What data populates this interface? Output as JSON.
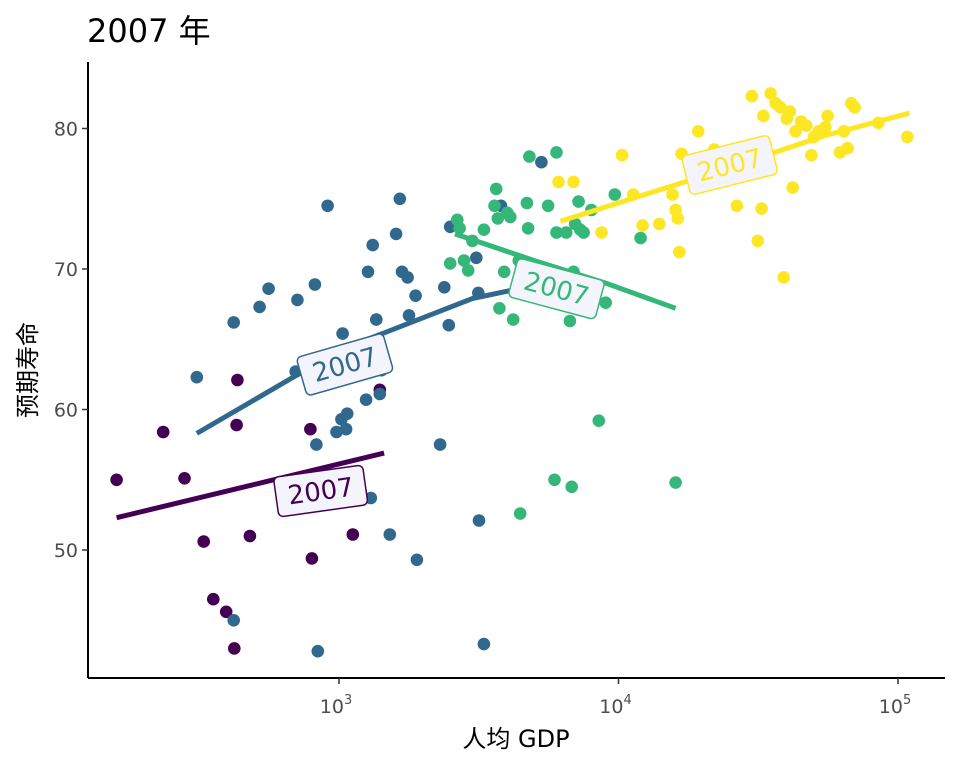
{
  "chart_data": {
    "type": "scatter",
    "title": "2007 年",
    "xlabel": "人均 GDP",
    "ylabel": "预期寿命",
    "x_scale": "log10",
    "xlim": [
      120,
      150000
    ],
    "ylim": [
      41,
      85
    ],
    "x_ticks": [
      {
        "value": 1000,
        "base": "10",
        "exp": "3"
      },
      {
        "value": 10000,
        "base": "10",
        "exp": "4"
      },
      {
        "value": 100000,
        "base": "10",
        "exp": "5"
      }
    ],
    "y_ticks": [
      50,
      60,
      70,
      80
    ],
    "grid": false,
    "legend": "none",
    "series": [
      {
        "color": "#440154",
        "fit_label": "2007",
        "fit": [
          [
            160,
            52.3
          ],
          [
            1450,
            56.9
          ]
        ],
        "points": [
          [
            160,
            55.0
          ],
          [
            235,
            58.4
          ],
          [
            280,
            55.1
          ],
          [
            328,
            50.6
          ],
          [
            355,
            46.5
          ],
          [
            395,
            45.6
          ],
          [
            422,
            43.0
          ],
          [
            430,
            58.9
          ],
          [
            433,
            62.1
          ],
          [
            480,
            51.0
          ],
          [
            790,
            58.6
          ],
          [
            800,
            49.4
          ],
          [
            1120,
            51.1
          ],
          [
            1400,
            61.4
          ]
        ]
      },
      {
        "color": "#31688e",
        "fit_label": "2007",
        "fit": [
          [
            310,
            58.3
          ],
          [
            1000,
            64.2
          ],
          [
            3000,
            67.9
          ],
          [
            5500,
            69.0
          ]
        ],
        "points": [
          [
            310,
            62.3
          ],
          [
            420,
            66.2
          ],
          [
            420,
            45.0
          ],
          [
            520,
            67.3
          ],
          [
            560,
            68.6
          ],
          [
            700,
            62.7
          ],
          [
            710,
            67.8
          ],
          [
            820,
            68.9
          ],
          [
            830,
            57.5
          ],
          [
            840,
            42.8
          ],
          [
            910,
            74.5
          ],
          [
            980,
            58.4
          ],
          [
            1020,
            59.3
          ],
          [
            1030,
            65.4
          ],
          [
            1060,
            58.6
          ],
          [
            1070,
            59.7
          ],
          [
            1250,
            60.7
          ],
          [
            1270,
            69.8
          ],
          [
            1300,
            53.7
          ],
          [
            1320,
            71.7
          ],
          [
            1360,
            66.4
          ],
          [
            1400,
            61.1
          ],
          [
            1420,
            62.8
          ],
          [
            1520,
            51.1
          ],
          [
            1600,
            72.5
          ],
          [
            1650,
            75.0
          ],
          [
            1680,
            69.8
          ],
          [
            1760,
            69.4
          ],
          [
            1780,
            66.7
          ],
          [
            1880,
            68.1
          ],
          [
            1900,
            49.3
          ],
          [
            2300,
            57.5
          ],
          [
            2380,
            68.7
          ],
          [
            2470,
            66.0
          ],
          [
            2500,
            73.0
          ],
          [
            3100,
            70.8
          ],
          [
            3150,
            68.3
          ],
          [
            3170,
            52.1
          ],
          [
            3300,
            43.3
          ],
          [
            3800,
            74.5
          ],
          [
            5300,
            77.6
          ]
        ]
      },
      {
        "color": "#35b779",
        "fit_label": "2007",
        "fit": [
          [
            2600,
            72.5
          ],
          [
            5000,
            70.6
          ],
          [
            9000,
            69.0
          ],
          [
            16000,
            67.2
          ]
        ],
        "points": [
          [
            2500,
            70.4
          ],
          [
            2650,
            73.5
          ],
          [
            2700,
            72.9
          ],
          [
            2800,
            70.6
          ],
          [
            2900,
            69.9
          ],
          [
            3000,
            72.0
          ],
          [
            3300,
            72.8
          ],
          [
            3600,
            74.5
          ],
          [
            3650,
            75.7
          ],
          [
            3700,
            73.6
          ],
          [
            3750,
            67.2
          ],
          [
            3900,
            69.8
          ],
          [
            4000,
            74.0
          ],
          [
            4100,
            73.7
          ],
          [
            4200,
            66.4
          ],
          [
            4400,
            70.6
          ],
          [
            4450,
            52.6
          ],
          [
            4700,
            74.7
          ],
          [
            4750,
            72.9
          ],
          [
            4800,
            78.0
          ],
          [
            5000,
            69.0
          ],
          [
            5600,
            74.5
          ],
          [
            5900,
            55.0
          ],
          [
            6000,
            78.3
          ],
          [
            6000,
            72.6
          ],
          [
            6500,
            72.6
          ],
          [
            6700,
            66.3
          ],
          [
            6800,
            54.5
          ],
          [
            6900,
            69.8
          ],
          [
            7000,
            73.2
          ],
          [
            7200,
            74.8
          ],
          [
            7300,
            72.8
          ],
          [
            7500,
            72.6
          ],
          [
            8000,
            74.2
          ],
          [
            8500,
            59.2
          ],
          [
            9000,
            67.6
          ],
          [
            9700,
            75.3
          ],
          [
            12000,
            72.2
          ],
          [
            16000,
            54.8
          ]
        ]
      },
      {
        "color": "#fde725",
        "fit_label": "2007",
        "fit": [
          [
            6200,
            73.4
          ],
          [
            20000,
            76.6
          ],
          [
            55000,
            79.5
          ],
          [
            110000,
            81.1
          ]
        ],
        "points": [
          [
            6100,
            76.2
          ],
          [
            6900,
            76.2
          ],
          [
            8700,
            72.6
          ],
          [
            10300,
            78.1
          ],
          [
            11300,
            75.3
          ],
          [
            12200,
            73.1
          ],
          [
            14000,
            73.2
          ],
          [
            15600,
            75.3
          ],
          [
            16000,
            74.2
          ],
          [
            16300,
            73.6
          ],
          [
            16500,
            71.2
          ],
          [
            16800,
            78.2
          ],
          [
            19300,
            79.8
          ],
          [
            22000,
            78.5
          ],
          [
            26500,
            74.5
          ],
          [
            30000,
            82.3
          ],
          [
            31500,
            72.0
          ],
          [
            32500,
            74.3
          ],
          [
            33000,
            80.9
          ],
          [
            35000,
            82.5
          ],
          [
            36500,
            81.8
          ],
          [
            38000,
            81.5
          ],
          [
            39000,
            69.4
          ],
          [
            40000,
            80.7
          ],
          [
            41000,
            81.2
          ],
          [
            42000,
            75.8
          ],
          [
            43000,
            79.8
          ],
          [
            45000,
            80.5
          ],
          [
            47000,
            80.2
          ],
          [
            49000,
            78.1
          ],
          [
            50000,
            79.4
          ],
          [
            52000,
            79.8
          ],
          [
            55000,
            80.1
          ],
          [
            56000,
            80.9
          ],
          [
            62000,
            78.3
          ],
          [
            64000,
            79.8
          ],
          [
            66000,
            78.6
          ],
          [
            68000,
            81.8
          ],
          [
            70000,
            81.5
          ],
          [
            85000,
            80.4
          ],
          [
            108000,
            79.4
          ]
        ]
      }
    ],
    "labels": [
      {
        "text": "2007",
        "x": 860,
        "y": 54.2,
        "angle": -8,
        "color": "#440154"
      },
      {
        "text": "2007",
        "x": 1050,
        "y": 63.2,
        "angle": -16,
        "color": "#31688e"
      },
      {
        "text": "2007",
        "x": 6000,
        "y": 68.6,
        "angle": 15,
        "color": "#35b779"
      },
      {
        "text": "2007",
        "x": 25000,
        "y": 77.4,
        "angle": -14,
        "color": "#fde725"
      }
    ]
  }
}
